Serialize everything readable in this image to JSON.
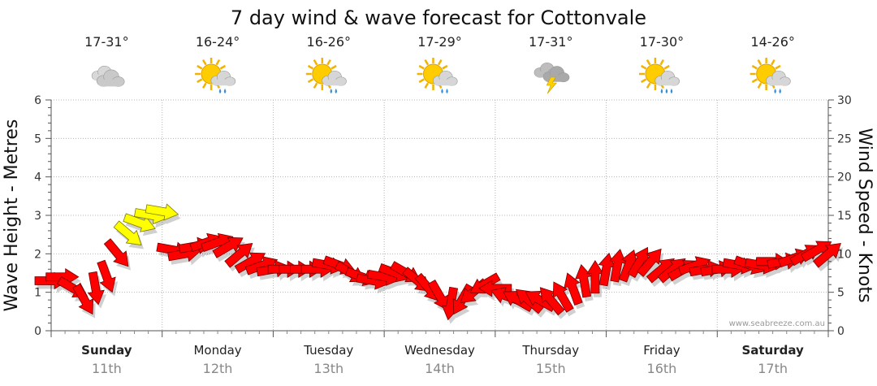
{
  "chart_data": {
    "type": "line",
    "title": "7 day wind & wave forecast for Cottonvale",
    "ylabel_left": "Wave Height - Metres",
    "ylabel_right": "Wind Speed - Knots",
    "left_ylim": [
      0,
      6
    ],
    "right_ylim": [
      0,
      30
    ],
    "left_ticks": [
      "0",
      "1",
      "2",
      "3",
      "4",
      "5",
      "6"
    ],
    "right_ticks": [
      "0",
      "5",
      "10",
      "15",
      "20",
      "25",
      "30"
    ],
    "credit": "www.seabreeze.com.au",
    "days": [
      {
        "name": "Sunday",
        "date": "11th",
        "bold": true,
        "temp": "17-31°",
        "icon": "cloudy-icon"
      },
      {
        "name": "Monday",
        "date": "12th",
        "bold": false,
        "temp": "16-24°",
        "icon": "sun-cloud-showers-icon"
      },
      {
        "name": "Tuesday",
        "date": "13th",
        "bold": false,
        "temp": "16-26°",
        "icon": "sun-cloud-showers-icon"
      },
      {
        "name": "Wednesday",
        "date": "14th",
        "bold": false,
        "temp": "17-29°",
        "icon": "sun-cloud-showers-icon"
      },
      {
        "name": "Thursday",
        "date": "15th",
        "bold": false,
        "temp": "17-31°",
        "icon": "thunderstorm-icon"
      },
      {
        "name": "Friday",
        "date": "16th",
        "bold": false,
        "temp": "17-30°",
        "icon": "sun-cloud-rain-icon"
      },
      {
        "name": "Saturday",
        "date": "17th",
        "bold": true,
        "temp": "14-26°",
        "icon": "sun-cloud-showers-icon"
      }
    ],
    "series": [
      {
        "name": "Wind Speed (knots)",
        "unit": "knots",
        "x_day_offset": [
          0.0,
          0.1,
          0.2,
          0.3,
          0.4,
          0.5,
          0.6,
          0.7,
          0.8,
          0.9,
          1.0,
          1.1,
          1.2,
          1.3,
          1.4,
          1.5,
          1.6,
          1.7,
          1.8,
          1.9,
          2.0,
          2.1,
          2.2,
          2.3,
          2.4,
          2.5,
          2.6,
          2.7,
          2.8,
          2.9,
          3.0,
          3.1,
          3.2,
          3.3,
          3.4,
          3.5,
          3.6,
          3.7,
          3.8,
          3.9,
          4.0,
          4.1,
          4.2,
          4.3,
          4.4,
          4.5,
          4.6,
          4.7,
          4.8,
          4.9,
          5.0,
          5.1,
          5.2,
          5.3,
          5.4,
          5.5,
          5.6,
          5.7,
          5.8,
          5.9,
          6.0,
          6.1,
          6.2,
          6.3,
          6.4,
          6.5,
          6.6,
          6.7,
          6.8,
          6.9,
          7.0
        ],
        "values": [
          6.5,
          7.0,
          5.5,
          4.0,
          5.5,
          7.0,
          10.0,
          12.5,
          14.0,
          15.0,
          15.5,
          10.5,
          10.0,
          11.0,
          11.5,
          11.5,
          11.0,
          10.0,
          9.0,
          8.5,
          8.0,
          8.0,
          8.0,
          8.0,
          8.0,
          8.5,
          8.5,
          7.5,
          7.0,
          6.5,
          7.0,
          7.5,
          7.5,
          6.5,
          5.5,
          4.5,
          3.5,
          4.0,
          5.0,
          6.0,
          5.5,
          4.5,
          4.0,
          4.0,
          4.0,
          4.0,
          4.5,
          5.5,
          6.5,
          7.0,
          8.0,
          8.5,
          8.5,
          9.0,
          9.0,
          8.0,
          8.0,
          8.0,
          8.5,
          8.0,
          8.0,
          8.0,
          8.5,
          8.5,
          8.5,
          9.0,
          9.0,
          9.5,
          10.0,
          10.5,
          10.0
        ],
        "direction_deg": [
          0,
          0,
          30,
          60,
          80,
          70,
          50,
          40,
          20,
          10,
          10,
          10,
          350,
          350,
          340,
          340,
          330,
          320,
          330,
          340,
          350,
          0,
          0,
          0,
          0,
          10,
          20,
          30,
          20,
          10,
          10,
          20,
          30,
          40,
          50,
          60,
          100,
          120,
          140,
          150,
          180,
          200,
          210,
          220,
          210,
          230,
          240,
          250,
          260,
          270,
          280,
          280,
          290,
          300,
          310,
          320,
          320,
          330,
          340,
          350,
          350,
          0,
          10,
          20,
          10,
          0,
          350,
          340,
          330,
          330,
          320
        ],
        "color_rule": "red when < 12 knots, yellow when >= 12 knots"
      }
    ]
  }
}
